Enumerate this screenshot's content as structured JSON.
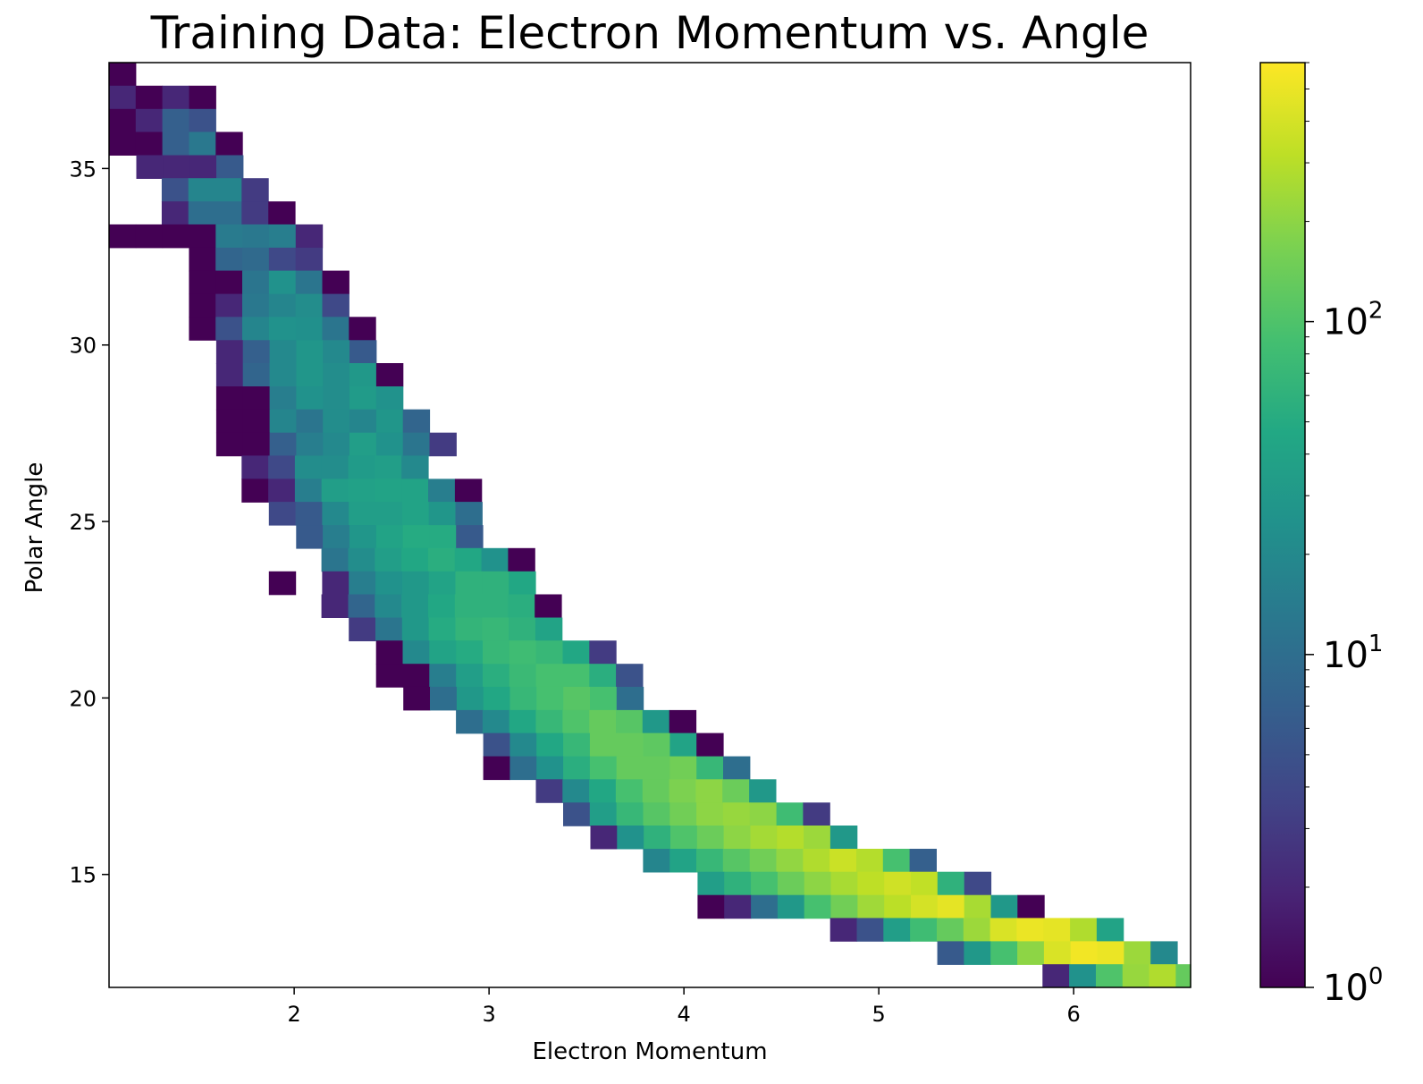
{
  "chart_data": {
    "type": "heatmap",
    "title": "Training Data: Electron Momentum vs. Angle",
    "xlabel": "Electron Momentum",
    "ylabel": "Polar Angle",
    "xlim": [
      1.05,
      6.6
    ],
    "ylim": [
      11.8,
      38.0
    ],
    "x_ticks": [
      "2",
      "3",
      "4",
      "5",
      "6"
    ],
    "y_ticks": [
      "15",
      "20",
      "25",
      "30",
      "35"
    ],
    "bin_width": 0.1368,
    "bin_height": 0.655,
    "colormap": "viridis",
    "color_scale": "log",
    "colorbar": {
      "range": [
        1,
        600
      ],
      "ticks": [
        "10^0",
        "10^1",
        "10^2"
      ]
    },
    "grid": false,
    "rows": [
      {
        "y": 37.67,
        "x_start": 1.05,
        "counts": [
          1
        ]
      },
      {
        "y": 37.02,
        "x_start": 1.05,
        "counts": [
          2,
          1,
          2,
          1
        ]
      },
      {
        "y": 36.36,
        "x_start": 1.05,
        "counts": [
          1,
          2,
          7,
          5
        ]
      },
      {
        "y": 35.71,
        "x_start": 1.05,
        "counts": [
          1,
          1,
          7,
          13,
          1
        ]
      },
      {
        "y": 35.05,
        "x_start": 1.19,
        "counts": [
          2,
          2,
          2,
          6
        ]
      },
      {
        "y": 34.4,
        "x_start": 1.32,
        "counts": [
          5,
          18,
          18,
          3
        ]
      },
      {
        "y": 33.74,
        "x_start": 1.32,
        "counts": [
          2,
          10,
          10,
          3,
          1
        ]
      },
      {
        "y": 33.09,
        "x_start": 1.05,
        "counts": [
          1,
          1,
          1,
          1,
          14,
          13,
          15,
          2
        ]
      },
      {
        "y": 32.43,
        "x_start": 1.46,
        "counts": [
          1,
          8,
          9,
          4,
          3
        ]
      },
      {
        "y": 31.78,
        "x_start": 1.46,
        "counts": [
          1,
          1,
          12,
          25,
          12,
          1
        ]
      },
      {
        "y": 31.12,
        "x_start": 1.46,
        "counts": [
          1,
          2,
          13,
          18,
          22,
          4
        ]
      },
      {
        "y": 30.47,
        "x_start": 1.46,
        "counts": [
          1,
          5,
          18,
          25,
          24,
          12,
          1
        ]
      },
      {
        "y": 29.81,
        "x_start": 1.6,
        "counts": [
          2,
          7,
          20,
          28,
          20,
          6
        ]
      },
      {
        "y": 29.16,
        "x_start": 1.6,
        "counts": [
          2,
          8,
          20,
          28,
          22,
          30,
          1
        ]
      },
      {
        "y": 28.5,
        "x_start": 1.6,
        "counts": [
          1,
          1,
          15,
          25,
          22,
          32,
          25
        ]
      },
      {
        "y": 27.85,
        "x_start": 1.6,
        "counts": [
          1,
          1,
          18,
          12,
          22,
          18,
          28,
          8
        ]
      },
      {
        "y": 27.19,
        "x_start": 1.6,
        "counts": [
          1,
          1,
          7,
          15,
          20,
          35,
          25,
          12,
          3
        ]
      },
      {
        "y": 26.54,
        "x_start": 1.73,
        "counts": [
          2,
          4,
          22,
          22,
          32,
          35,
          20
        ]
      },
      {
        "y": 25.88,
        "x_start": 1.73,
        "counts": [
          1,
          2,
          15,
          35,
          38,
          40,
          40,
          15,
          1
        ]
      },
      {
        "y": 25.23,
        "x_start": 1.87,
        "counts": [
          4,
          6,
          20,
          35,
          35,
          40,
          28,
          10
        ]
      },
      {
        "y": 24.57,
        "x_start": 2.01,
        "counts": [
          6,
          15,
          28,
          40,
          50,
          50,
          6
        ]
      },
      {
        "y": 23.92,
        "x_start": 2.14,
        "counts": [
          12,
          22,
          35,
          45,
          55,
          45,
          25,
          1
        ]
      },
      {
        "y": 23.26,
        "x_start": 1.87,
        "counts": [
          1,
          0,
          2,
          15,
          25,
          30,
          40,
          60,
          60,
          45
        ]
      },
      {
        "y": 22.61,
        "x_start": 2.14,
        "counts": [
          2,
          8,
          20,
          30,
          45,
          60,
          60,
          55,
          1
        ]
      },
      {
        "y": 21.95,
        "x_start": 2.28,
        "counts": [
          3,
          12,
          30,
          50,
          65,
          70,
          60,
          40
        ]
      },
      {
        "y": 21.3,
        "x_start": 2.42,
        "counts": [
          1,
          20,
          40,
          50,
          70,
          80,
          70,
          45,
          3
        ]
      },
      {
        "y": 20.64,
        "x_start": 2.42,
        "counts": [
          1,
          1,
          15,
          35,
          55,
          75,
          90,
          90,
          55,
          5
        ]
      },
      {
        "y": 19.99,
        "x_start": 2.56,
        "counts": [
          1,
          10,
          30,
          45,
          70,
          90,
          110,
          90,
          10
        ]
      },
      {
        "y": 19.33,
        "x_start": 2.83,
        "counts": [
          10,
          20,
          45,
          70,
          100,
          130,
          110,
          30,
          1
        ]
      },
      {
        "y": 18.68,
        "x_start": 2.97,
        "counts": [
          5,
          20,
          45,
          70,
          130,
          130,
          120,
          40,
          1
        ]
      },
      {
        "y": 18.02,
        "x_start": 2.97,
        "counts": [
          1,
          10,
          25,
          55,
          90,
          130,
          130,
          150,
          70,
          10
        ]
      },
      {
        "y": 17.37,
        "x_start": 3.24,
        "counts": [
          3,
          20,
          45,
          90,
          130,
          170,
          200,
          140,
          30
        ]
      },
      {
        "y": 16.71,
        "x_start": 3.38,
        "counts": [
          5,
          35,
          70,
          110,
          150,
          200,
          220,
          200,
          80,
          3
        ]
      },
      {
        "y": 16.06,
        "x_start": 3.52,
        "counts": [
          2,
          25,
          60,
          100,
          140,
          200,
          250,
          290,
          230,
          30
        ]
      },
      {
        "y": 15.4,
        "x_start": 3.79,
        "counts": [
          18,
          40,
          70,
          110,
          150,
          210,
          280,
          360,
          290,
          90,
          7
        ]
      },
      {
        "y": 14.75,
        "x_start": 4.07,
        "counts": [
          35,
          60,
          90,
          140,
          200,
          260,
          320,
          380,
          330,
          60,
          4
        ]
      },
      {
        "y": 14.09,
        "x_start": 4.07,
        "counts": [
          1,
          2,
          10,
          30,
          90,
          150,
          240,
          310,
          400,
          470,
          260,
          30,
          1
        ]
      },
      {
        "y": 13.44,
        "x_start": 4.75,
        "counts": [
          2,
          5,
          35,
          80,
          130,
          230,
          420,
          500,
          470,
          280,
          40
        ]
      },
      {
        "y": 12.78,
        "x_start": 5.3,
        "counts": [
          6,
          30,
          90,
          200,
          420,
          540,
          500,
          230,
          20
        ]
      },
      {
        "y": 12.13,
        "x_start": 5.84,
        "counts": [
          2,
          25,
          100,
          220,
          280,
          130
        ]
      }
    ]
  }
}
